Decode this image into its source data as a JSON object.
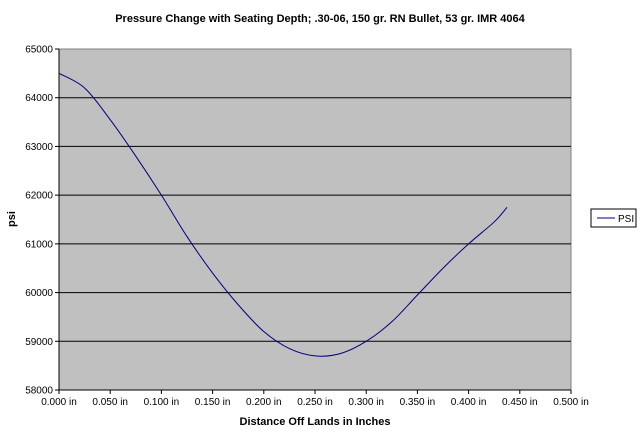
{
  "chart_data": {
    "type": "line",
    "title": "Pressure Change with Seating Depth; .30-06, 150 gr. RN Bullet, 53 gr. IMR 4064",
    "xlabel": "Distance Off Lands in Inches",
    "ylabel": "psi",
    "xlim": [
      0,
      0.5
    ],
    "ylim": [
      58000,
      65000
    ],
    "x_ticks": [
      0.0,
      0.05,
      0.1,
      0.15,
      0.2,
      0.25,
      0.3,
      0.35,
      0.4,
      0.45,
      0.5
    ],
    "x_tick_labels": [
      "0.000 in",
      "0.050 in",
      "0.100 in",
      "0.150 in",
      "0.200 in",
      "0.250 in",
      "0.300 in",
      "0.350 in",
      "0.400 in",
      "0.450 in",
      "0.500 in"
    ],
    "y_ticks": [
      58000,
      59000,
      60000,
      61000,
      62000,
      63000,
      64000,
      65000
    ],
    "y_tick_labels": [
      "58000",
      "59000",
      "60000",
      "61000",
      "62000",
      "63000",
      "64000",
      "65000"
    ],
    "grid": "horizontal",
    "legend": "right",
    "plot_background": "#c0c0c0",
    "series": [
      {
        "name": "PSI",
        "color": "#000080",
        "x": [
          0.0,
          0.025,
          0.05,
          0.075,
          0.1,
          0.125,
          0.15,
          0.175,
          0.2,
          0.225,
          0.25,
          0.275,
          0.3,
          0.325,
          0.35,
          0.375,
          0.4,
          0.425,
          0.4375
        ],
        "y": [
          64500,
          64200,
          63550,
          62800,
          62000,
          61150,
          60400,
          59750,
          59200,
          58850,
          58700,
          58750,
          59000,
          59400,
          59950,
          60500,
          61000,
          61450,
          61750
        ]
      }
    ]
  }
}
